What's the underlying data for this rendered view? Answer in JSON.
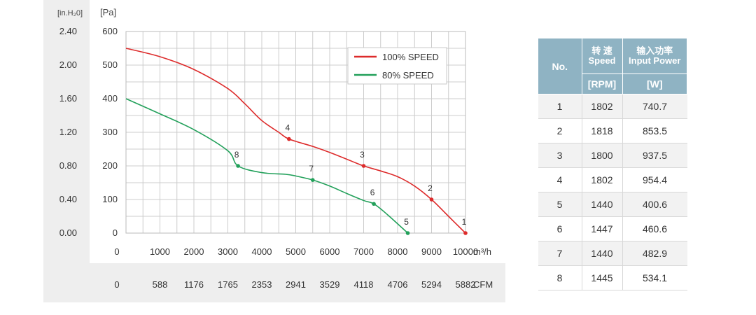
{
  "chart_data": {
    "type": "line",
    "x_unit": "m³/h",
    "x_ticks": [
      0,
      1000,
      2000,
      3000,
      4000,
      5000,
      6000,
      7000,
      8000,
      9000,
      10000
    ],
    "cfm_unit": "CFM",
    "cfm_ticks": [
      "0",
      "588",
      "1176",
      "1765",
      "2353",
      "2941",
      "3529",
      "4118",
      "4706",
      "5294",
      "5882"
    ],
    "y_unit": "[Pa]",
    "y_ticks": [
      0,
      100,
      200,
      300,
      400,
      500,
      600
    ],
    "y2_unit": "[in.H₂0]",
    "y2_ticks": [
      "0.00",
      "0.40",
      "0.80",
      "1.20",
      "1.60",
      "2.00",
      "2.40"
    ],
    "xlim": [
      0,
      10000
    ],
    "ylim": [
      0,
      600
    ],
    "grid": true,
    "legend_position": "top-right",
    "series": [
      {
        "name": "100% SPEED",
        "color": "#dd2b2b",
        "x": [
          0,
          1000,
          2000,
          3000,
          3500,
          4000,
          4500,
          4800,
          5500,
          6000,
          6500,
          7000,
          7500,
          8000,
          8500,
          9000,
          9500,
          10000
        ],
        "y": [
          550,
          525,
          487,
          430,
          385,
          335,
          300,
          280,
          258,
          240,
          220,
          200,
          185,
          168,
          140,
          100,
          50,
          0
        ],
        "points": [
          {
            "label": "4",
            "x": 4800,
            "y": 280
          },
          {
            "label": "3",
            "x": 7000,
            "y": 200
          },
          {
            "label": "2",
            "x": 9000,
            "y": 100
          },
          {
            "label": "1",
            "x": 10000,
            "y": 0
          }
        ]
      },
      {
        "name": "80% SPEED",
        "color": "#22a05a",
        "x": [
          0,
          1000,
          2000,
          3000,
          3300,
          4000,
          4700,
          5000,
          5500,
          6000,
          6500,
          7000,
          7300,
          7700,
          8300
        ],
        "y": [
          400,
          355,
          308,
          245,
          200,
          180,
          175,
          170,
          158,
          140,
          118,
          97,
          87,
          55,
          0
        ],
        "points": [
          {
            "label": "8",
            "x": 3300,
            "y": 200
          },
          {
            "label": "7",
            "x": 5500,
            "y": 158
          },
          {
            "label": "6",
            "x": 7300,
            "y": 87
          },
          {
            "label": "5",
            "x": 8300,
            "y": 0
          }
        ]
      }
    ]
  },
  "table": {
    "headers": {
      "no": "No.",
      "speed_cn": "转 速",
      "speed_en": "Speed",
      "power_cn": "输入功率",
      "power_en": "Input Power",
      "speed_unit": "[RPM]",
      "power_unit": "[W]"
    },
    "rows": [
      {
        "no": "1",
        "speed": "1802",
        "power": "740.7"
      },
      {
        "no": "2",
        "speed": "1818",
        "power": "853.5"
      },
      {
        "no": "3",
        "speed": "1800",
        "power": "937.5"
      },
      {
        "no": "4",
        "speed": "1802",
        "power": "954.4"
      },
      {
        "no": "5",
        "speed": "1440",
        "power": "400.6"
      },
      {
        "no": "6",
        "speed": "1447",
        "power": "460.6"
      },
      {
        "no": "7",
        "speed": "1440",
        "power": "482.9"
      },
      {
        "no": "8",
        "speed": "1445",
        "power": "534.1"
      }
    ]
  }
}
